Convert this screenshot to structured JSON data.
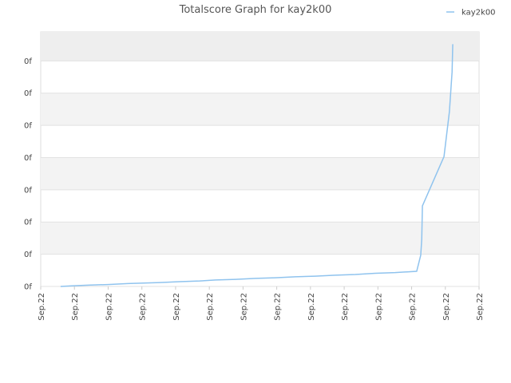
{
  "chart_data": {
    "type": "line",
    "title": "Totalscore Graph for kay2k00",
    "x": [
      0.59,
      0.92,
      1.4,
      1.99,
      2.58,
      3.05,
      3.53,
      4.12,
      4.71,
      5.19,
      5.78,
      6.37,
      6.96,
      7.55,
      8.14,
      8.74,
      9.33,
      9.92,
      10.51,
      11.15,
      11.27,
      11.3,
      11.32,
      11.96,
      12.12,
      12.2,
      12.22
    ],
    "series": [
      {
        "name": "kay2k00",
        "color": "#8fc3ee",
        "values": [
          0,
          0.02,
          0.04,
          0.06,
          0.09,
          0.105,
          0.12,
          0.15,
          0.17,
          0.2,
          0.22,
          0.25,
          0.27,
          0.3,
          0.32,
          0.35,
          0.37,
          0.41,
          0.43,
          0.47,
          0.97,
          1.46,
          2.5,
          4.03,
          5.42,
          6.66,
          7.52
        ]
      }
    ],
    "xlim": [
      0,
      13
    ],
    "xticks": [
      {
        "value": 0,
        "label": "Sep.22"
      },
      {
        "value": 1,
        "label": "Sep.22"
      },
      {
        "value": 2,
        "label": "Sep.22"
      },
      {
        "value": 3,
        "label": "Sep.22"
      },
      {
        "value": 4,
        "label": "Sep.22"
      },
      {
        "value": 5,
        "label": "Sep.22"
      },
      {
        "value": 6,
        "label": "Sep.22"
      },
      {
        "value": 7,
        "label": "Sep.22"
      },
      {
        "value": 8,
        "label": "Sep.22"
      },
      {
        "value": 9,
        "label": "Sep.22"
      },
      {
        "value": 10,
        "label": "Sep.22"
      },
      {
        "value": 11,
        "label": "Sep.22"
      },
      {
        "value": 12,
        "label": "Sep.22"
      },
      {
        "value": 13,
        "label": "Sep.22"
      }
    ],
    "ylim": [
      0,
      7.9
    ],
    "yticks": [
      {
        "value": 0,
        "label": "0f"
      },
      {
        "value": 1,
        "label": "0f"
      },
      {
        "value": 2,
        "label": "0f"
      },
      {
        "value": 3,
        "label": "0f"
      },
      {
        "value": 4,
        "label": "0f"
      },
      {
        "value": 5,
        "label": "0f"
      },
      {
        "value": 6,
        "label": "0f"
      },
      {
        "value": 7,
        "label": "0f"
      }
    ],
    "grid": true,
    "legend": "top-right"
  }
}
